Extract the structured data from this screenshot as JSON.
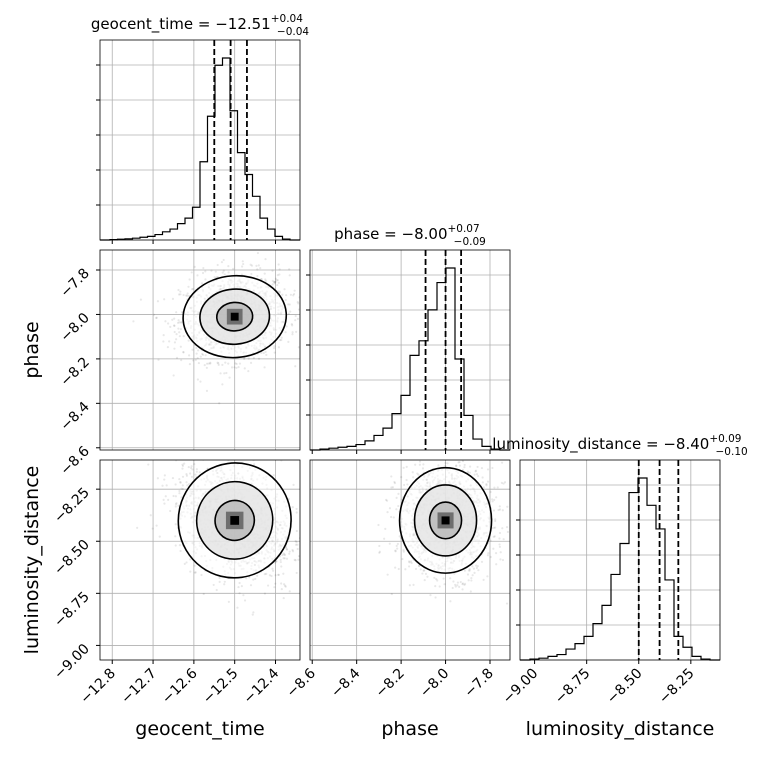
{
  "chart_data": {
    "type": "corner",
    "parameters": [
      {
        "name": "geocent_time",
        "xlabel": "geocent_time",
        "title_prefix": "geocent_time = ",
        "median": "−12.51",
        "upper": "+0.04",
        "lower": "−0.04",
        "quantiles": [
          -12.55,
          -12.51,
          -12.47
        ],
        "range": [
          -12.83,
          -12.34
        ],
        "ticks": [
          -12.8,
          -12.7,
          -12.6,
          -12.5,
          -12.4
        ],
        "tick_labels": [
          "−12.8",
          "−12.7",
          "−12.6",
          "−12.5",
          "−12.4"
        ],
        "hist_counts": [
          0.2,
          0.4,
          0.6,
          1,
          1.5,
          2,
          3,
          4.5,
          6,
          9,
          12,
          18,
          43,
          68,
          96,
          100,
          71,
          48,
          36,
          24,
          12,
          6,
          2,
          0.5
        ]
      },
      {
        "name": "phase",
        "xlabel": "phase",
        "ylabel": "phase",
        "title_prefix": "phase = ",
        "median": "−8.00",
        "upper": "+0.07",
        "lower": "−0.09",
        "quantiles": [
          -8.09,
          -8.0,
          -7.93
        ],
        "range": [
          -8.61,
          -7.71
        ],
        "ticks": [
          -8.6,
          -8.4,
          -8.2,
          -8.0,
          -7.8
        ],
        "tick_labels": [
          "−8.6",
          "−8.4",
          "−8.2",
          "−8.0",
          "−7.8"
        ],
        "hist_counts": [
          0.5,
          1,
          1.5,
          2,
          3,
          5,
          8,
          12,
          20,
          30,
          52,
          60,
          77,
          92,
          100,
          50,
          19,
          6,
          2,
          0.5
        ]
      },
      {
        "name": "luminosity_distance",
        "xlabel": "luminosity_distance",
        "ylabel": "luminosity_distance",
        "title_prefix": "luminosity_distance = ",
        "median": "−8.40",
        "upper": "+0.09",
        "lower": "−0.10",
        "quantiles": [
          -8.5,
          -8.4,
          -8.31
        ],
        "range": [
          -9.07,
          -8.11
        ],
        "ticks": [
          -9.0,
          -8.75,
          -8.5,
          -8.25
        ],
        "tick_labels": [
          "−9.00",
          "−8.75",
          "−8.50",
          "−8.25"
        ],
        "y_ticks": [
          -9.0,
          -8.75,
          -8.5,
          -8.25
        ],
        "y_tick_labels": [
          "−9.00",
          "−8.75",
          "−8.50",
          "−8.25"
        ],
        "hist_counts": [
          0.5,
          1,
          2,
          3,
          6,
          9,
          13,
          20,
          30,
          47,
          64,
          92,
          100,
          85,
          72,
          44,
          13,
          7,
          2,
          0.5
        ]
      }
    ],
    "pairs": [
      {
        "x": "geocent_time",
        "y": "phase",
        "center": [
          -12.5,
          -8.01
        ],
        "spread": [
          0.055,
          0.08
        ],
        "correlation": 0.1
      },
      {
        "x": "geocent_time",
        "y": "luminosity_distance",
        "center": [
          -12.5,
          -8.4
        ],
        "spread": [
          0.06,
          0.12
        ],
        "correlation": -0.35
      },
      {
        "x": "phase",
        "y": "luminosity_distance",
        "center": [
          -8.0,
          -8.4
        ],
        "spread": [
          0.09,
          0.11
        ],
        "correlation": 0.0
      }
    ],
    "grid": true,
    "density_colors": [
      "#ffffff",
      "#d9d9d9",
      "#a8a8a8",
      "#6e6e6e",
      "#000000"
    ]
  }
}
